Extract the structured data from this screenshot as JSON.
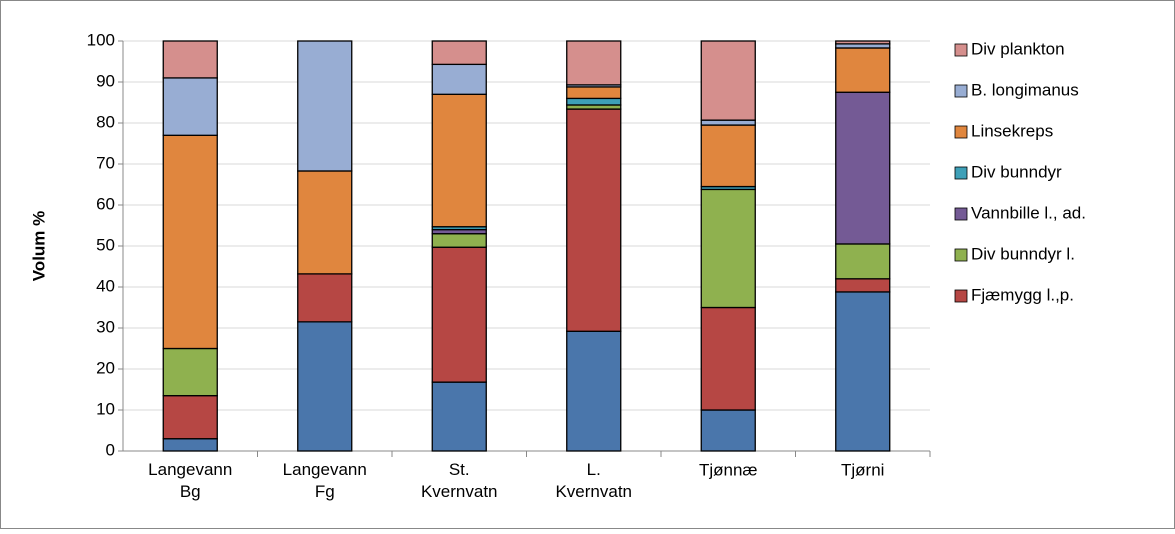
{
  "chart_data": {
    "type": "bar",
    "stacked": true,
    "y_label": "Volum %",
    "categories": [
      "Langevann Bg",
      "Langevann Fg",
      "St. Kvernvatn",
      "L. Kvernvatn",
      "Tjønnæ",
      "Tjørni"
    ],
    "series": [
      {
        "name": null,
        "color": "#4a76ab",
        "values": [
          3,
          31.5,
          16.8,
          29.2,
          10,
          38.8
        ]
      },
      {
        "name": "Fjæmygg l.,p.",
        "color": "#b64744",
        "values": [
          10.5,
          11.7,
          32.9,
          54.2,
          25,
          3.2
        ]
      },
      {
        "name": "Div bunndyr l.",
        "color": "#8fb14f",
        "values": [
          11.5,
          0,
          3.3,
          1,
          28.8,
          8.5
        ]
      },
      {
        "name": "Vannbille l., ad.",
        "color": "#745a95",
        "values": [
          0,
          0,
          1,
          0,
          0,
          37
        ]
      },
      {
        "name": "Div bunndyr",
        "color": "#3ea0b8",
        "values": [
          0,
          0,
          0.7,
          1.6,
          0.7,
          0
        ]
      },
      {
        "name": "Linsekreps",
        "color": "#e0863e",
        "values": [
          52,
          25.1,
          32.3,
          2.8,
          15,
          10.8
        ]
      },
      {
        "name": "B. longimanus",
        "color": "#98add3",
        "values": [
          14,
          31.7,
          7.3,
          0.5,
          1.2,
          1
        ]
      },
      {
        "name": "Div plankton",
        "color": "#d58f8d",
        "values": [
          9,
          0,
          5.7,
          10.7,
          19.3,
          0.7
        ]
      }
    ],
    "ylim": [
      0,
      100
    ],
    "yticks": [
      0,
      10,
      20,
      30,
      40,
      50,
      60,
      70,
      80,
      90,
      100
    ],
    "grid": true
  }
}
